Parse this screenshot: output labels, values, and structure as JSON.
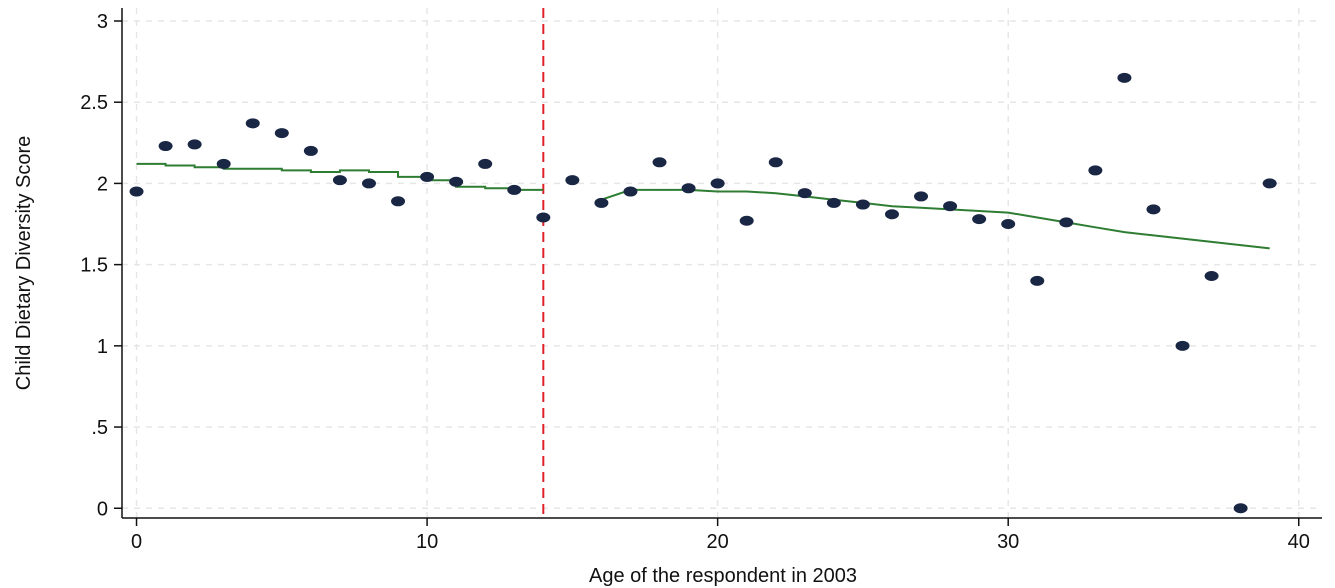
{
  "chart_data": {
    "type": "scatter",
    "title": "",
    "xlabel": "Age of the respondent in 2003",
    "ylabel": "Child Dietary Diversity Score",
    "xlim": [
      -0.5,
      40.8
    ],
    "ylim": [
      -0.06,
      3.08
    ],
    "x_ticks": [
      0,
      10,
      20,
      30,
      40
    ],
    "x_tick_labels": [
      "0",
      "10",
      "20",
      "30",
      "40"
    ],
    "y_ticks": [
      0,
      0.5,
      1,
      1.5,
      2,
      2.5,
      3
    ],
    "y_tick_labels": [
      "0",
      ".5",
      "1",
      "1.5",
      "2",
      "2.5",
      "3"
    ],
    "grid": true,
    "cutoff_x": 14,
    "colors": {
      "points": "#1a2744",
      "fit": "#2e7d32",
      "cutoff": "#e0212a",
      "grid": "#e6e6e6",
      "axis": "#111111"
    },
    "series": [
      {
        "kind": "scatter",
        "x": [
          0,
          1,
          2,
          3,
          4,
          5,
          6,
          7,
          8,
          9,
          10,
          11,
          12,
          13,
          14,
          15,
          16,
          17,
          18,
          19,
          20,
          21,
          22,
          23,
          24,
          25,
          26,
          27,
          28,
          29,
          30,
          31,
          32,
          33,
          34,
          35,
          36,
          37,
          38,
          39
        ],
        "y": [
          1.95,
          2.23,
          2.24,
          2.12,
          2.37,
          2.31,
          2.2,
          2.02,
          2.0,
          1.89,
          2.04,
          2.01,
          2.12,
          1.96,
          1.79,
          2.02,
          1.88,
          1.95,
          2.13,
          1.97,
          2.0,
          1.77,
          2.13,
          1.94,
          1.88,
          1.87,
          1.81,
          1.92,
          1.86,
          1.78,
          1.75,
          1.4,
          1.76,
          2.08,
          2.65,
          1.84,
          1.0,
          1.43,
          0.0,
          2.0
        ]
      },
      {
        "kind": "step-line",
        "x": [
          0,
          1,
          1,
          2,
          2,
          3,
          3,
          4,
          4,
          5,
          5,
          6,
          6,
          7,
          7,
          8,
          8,
          9,
          9,
          10,
          10,
          11,
          11,
          12,
          12,
          13,
          13,
          14
        ],
        "y": [
          2.12,
          2.12,
          2.11,
          2.11,
          2.1,
          2.1,
          2.09,
          2.09,
          2.09,
          2.09,
          2.08,
          2.08,
          2.07,
          2.07,
          2.08,
          2.08,
          2.07,
          2.07,
          2.04,
          2.04,
          2.02,
          2.02,
          1.98,
          1.98,
          1.97,
          1.97,
          1.96,
          1.96
        ]
      },
      {
        "kind": "line",
        "x": [
          16,
          17,
          18,
          19,
          20,
          21,
          22,
          23,
          24,
          25,
          26,
          27,
          28,
          29,
          30,
          31,
          32,
          33,
          34,
          35,
          36,
          37,
          38,
          39
        ],
        "y": [
          1.9,
          1.96,
          1.96,
          1.96,
          1.95,
          1.95,
          1.94,
          1.92,
          1.9,
          1.88,
          1.86,
          1.85,
          1.84,
          1.83,
          1.82,
          1.79,
          1.76,
          1.73,
          1.7,
          1.68,
          1.66,
          1.64,
          1.62,
          1.6
        ]
      }
    ]
  }
}
